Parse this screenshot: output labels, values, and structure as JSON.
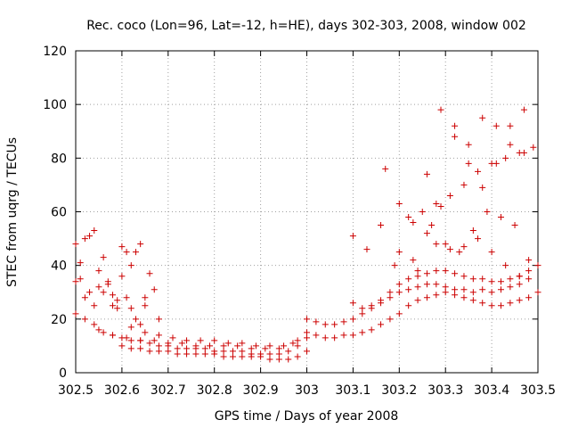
{
  "chart_data": {
    "type": "scatter",
    "title": "Rec. coco (Lon=96, Lat=-12, h=HE), days 302-303, 2008, window 002",
    "xlabel": "GPS time / Days of year 2008",
    "ylabel": "STEC from uqrg / TECUs",
    "xlim": [
      302.5,
      303.5
    ],
    "ylim": [
      0,
      120
    ],
    "xticks": [
      "302.5",
      "302.6",
      "302.7",
      "302.8",
      "302.9",
      "303",
      "303.1",
      "303.2",
      "303.3",
      "303.4",
      "303.5"
    ],
    "yticks": [
      "0",
      "20",
      "40",
      "60",
      "80",
      "100",
      "120"
    ],
    "grid": true,
    "marker": "+",
    "color": "#cc0000",
    "series": [
      {
        "x": [
          302.5,
          302.51,
          302.52,
          302.53,
          302.54,
          302.55,
          302.56,
          302.57,
          302.58,
          302.59,
          302.6,
          302.61,
          302.62,
          302.63,
          302.64,
          302.65,
          302.5,
          302.51,
          302.52,
          302.53,
          302.54,
          302.55,
          302.56,
          302.57,
          302.58,
          302.59,
          302.6,
          302.61,
          302.62,
          302.63,
          302.64,
          302.65,
          302.66,
          302.67,
          302.68,
          302.5,
          302.52,
          302.54,
          302.56,
          302.58,
          302.6,
          302.62,
          302.64,
          302.66,
          302.68,
          302.7,
          302.72,
          302.74,
          302.76,
          302.78,
          302.8,
          302.82,
          302.84,
          302.86,
          302.88,
          302.9,
          302.92,
          302.94,
          302.96,
          302.98,
          302.6,
          302.62,
          302.64,
          302.66,
          302.68,
          302.7,
          302.72,
          302.74,
          302.76,
          302.78,
          302.8,
          302.82,
          302.84,
          302.86,
          302.88,
          302.9,
          302.92,
          302.94,
          302.96,
          302.98,
          303.0,
          302.55,
          302.58,
          302.61,
          302.64,
          302.67,
          302.7,
          302.73,
          302.76,
          302.79,
          302.82,
          302.85,
          302.88,
          302.91,
          302.94,
          302.97,
          303.0,
          302.62,
          302.65,
          302.68,
          302.71,
          302.74,
          302.77,
          302.8,
          302.83,
          302.86,
          302.89,
          302.92,
          302.95,
          302.98,
          303.0,
          303.02,
          303.04,
          303.06,
          303.08,
          303.1,
          303.12,
          303.14,
          303.16,
          303.18,
          303.2,
          303.22,
          303.24,
          303.26,
          303.28,
          303.3,
          303.32,
          303.34,
          303.36,
          303.38,
          303.4,
          303.42,
          303.44,
          303.46,
          303.48,
          303.5,
          303.0,
          303.02,
          303.04,
          303.06,
          303.08,
          303.1,
          303.12,
          303.14,
          303.16,
          303.18,
          303.2,
          303.22,
          303.24,
          303.26,
          303.28,
          303.3,
          303.32,
          303.34,
          303.36,
          303.38,
          303.4,
          303.42,
          303.44,
          303.46,
          303.48,
          303.1,
          303.12,
          303.14,
          303.16,
          303.18,
          303.2,
          303.22,
          303.24,
          303.26,
          303.28,
          303.3,
          303.32,
          303.34,
          303.36,
          303.38,
          303.4,
          303.42,
          303.44,
          303.46,
          303.48,
          303.5,
          303.1,
          303.13,
          303.16,
          303.19,
          303.22,
          303.25,
          303.28,
          303.31,
          303.34,
          303.37,
          303.4,
          303.43,
          303.46,
          303.49,
          303.17,
          303.2,
          303.23,
          303.26,
          303.29,
          303.32,
          303.35,
          303.38,
          303.41,
          303.44,
          303.47,
          303.2,
          303.23,
          303.26,
          303.29,
          303.32,
          303.35,
          303.38,
          303.41,
          303.44,
          303.47,
          303.24,
          303.27,
          303.3,
          303.33,
          303.36,
          303.39,
          303.42,
          303.45,
          303.48,
          303.28,
          303.31,
          303.34,
          303.37,
          303.4,
          303.43,
          303.46
        ],
        "y": [
          48,
          41,
          50,
          51,
          53,
          38,
          43,
          33,
          29,
          27,
          47,
          45,
          40,
          45,
          48,
          28,
          34,
          35,
          28,
          30,
          25,
          32,
          30,
          34,
          25,
          24,
          36,
          28,
          24,
          20,
          18,
          25,
          37,
          31,
          20,
          22,
          20,
          18,
          15,
          14,
          13,
          12,
          12,
          11,
          10,
          10,
          9,
          9,
          9,
          9,
          8,
          8,
          8,
          8,
          7,
          7,
          7,
          7,
          8,
          10,
          10,
          9,
          9,
          8,
          8,
          8,
          7,
          7,
          7,
          7,
          7,
          6,
          6,
          6,
          6,
          6,
          5,
          5,
          5,
          6,
          8,
          16,
          14,
          13,
          12,
          12,
          11,
          11,
          10,
          10,
          10,
          10,
          9,
          9,
          9,
          11,
          13,
          17,
          15,
          14,
          13,
          12,
          12,
          12,
          11,
          11,
          10,
          10,
          10,
          12,
          15,
          14,
          13,
          13,
          14,
          14,
          15,
          16,
          18,
          20,
          22,
          25,
          27,
          28,
          29,
          30,
          29,
          28,
          27,
          26,
          25,
          25,
          26,
          27,
          28,
          30,
          20,
          19,
          18,
          18,
          19,
          20,
          22,
          24,
          26,
          28,
          30,
          31,
          32,
          33,
          33,
          32,
          31,
          31,
          30,
          31,
          30,
          31,
          32,
          33,
          35,
          26,
          24,
          25,
          27,
          30,
          33,
          35,
          36,
          37,
          38,
          38,
          37,
          36,
          35,
          35,
          34,
          34,
          35,
          36,
          38,
          40,
          51,
          46,
          55,
          40,
          58,
          60,
          63,
          66,
          70,
          75,
          78,
          80,
          82,
          84,
          76,
          63,
          56,
          74,
          98,
          88,
          85,
          95,
          78,
          92,
          82,
          45,
          42,
          52,
          62,
          92,
          78,
          69,
          92,
          85,
          98,
          38,
          55,
          48,
          45,
          53,
          60,
          58,
          55,
          42,
          48,
          46,
          47,
          50,
          45,
          40,
          36
        ]
      }
    ]
  }
}
